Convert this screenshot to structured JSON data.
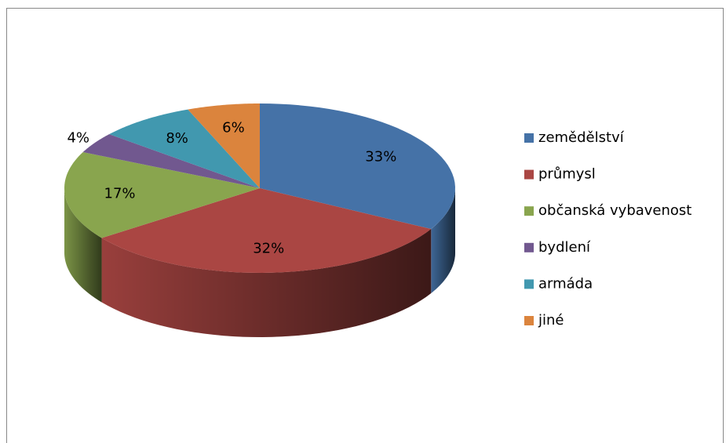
{
  "chart_data": {
    "type": "pie3d",
    "categories": [
      "zemědělství",
      "průmysl",
      "občanská vybavenost",
      "bydlení",
      "armáda",
      "jiné"
    ],
    "values": [
      33,
      32,
      17,
      4,
      8,
      6
    ],
    "value_labels": [
      "33%",
      "32%",
      "17%",
      "4%",
      "8%",
      "6%"
    ],
    "colors": [
      "#4572a7",
      "#aa4643",
      "#89a54e",
      "#71588f",
      "#4198af",
      "#db843d"
    ],
    "legend": "right"
  }
}
